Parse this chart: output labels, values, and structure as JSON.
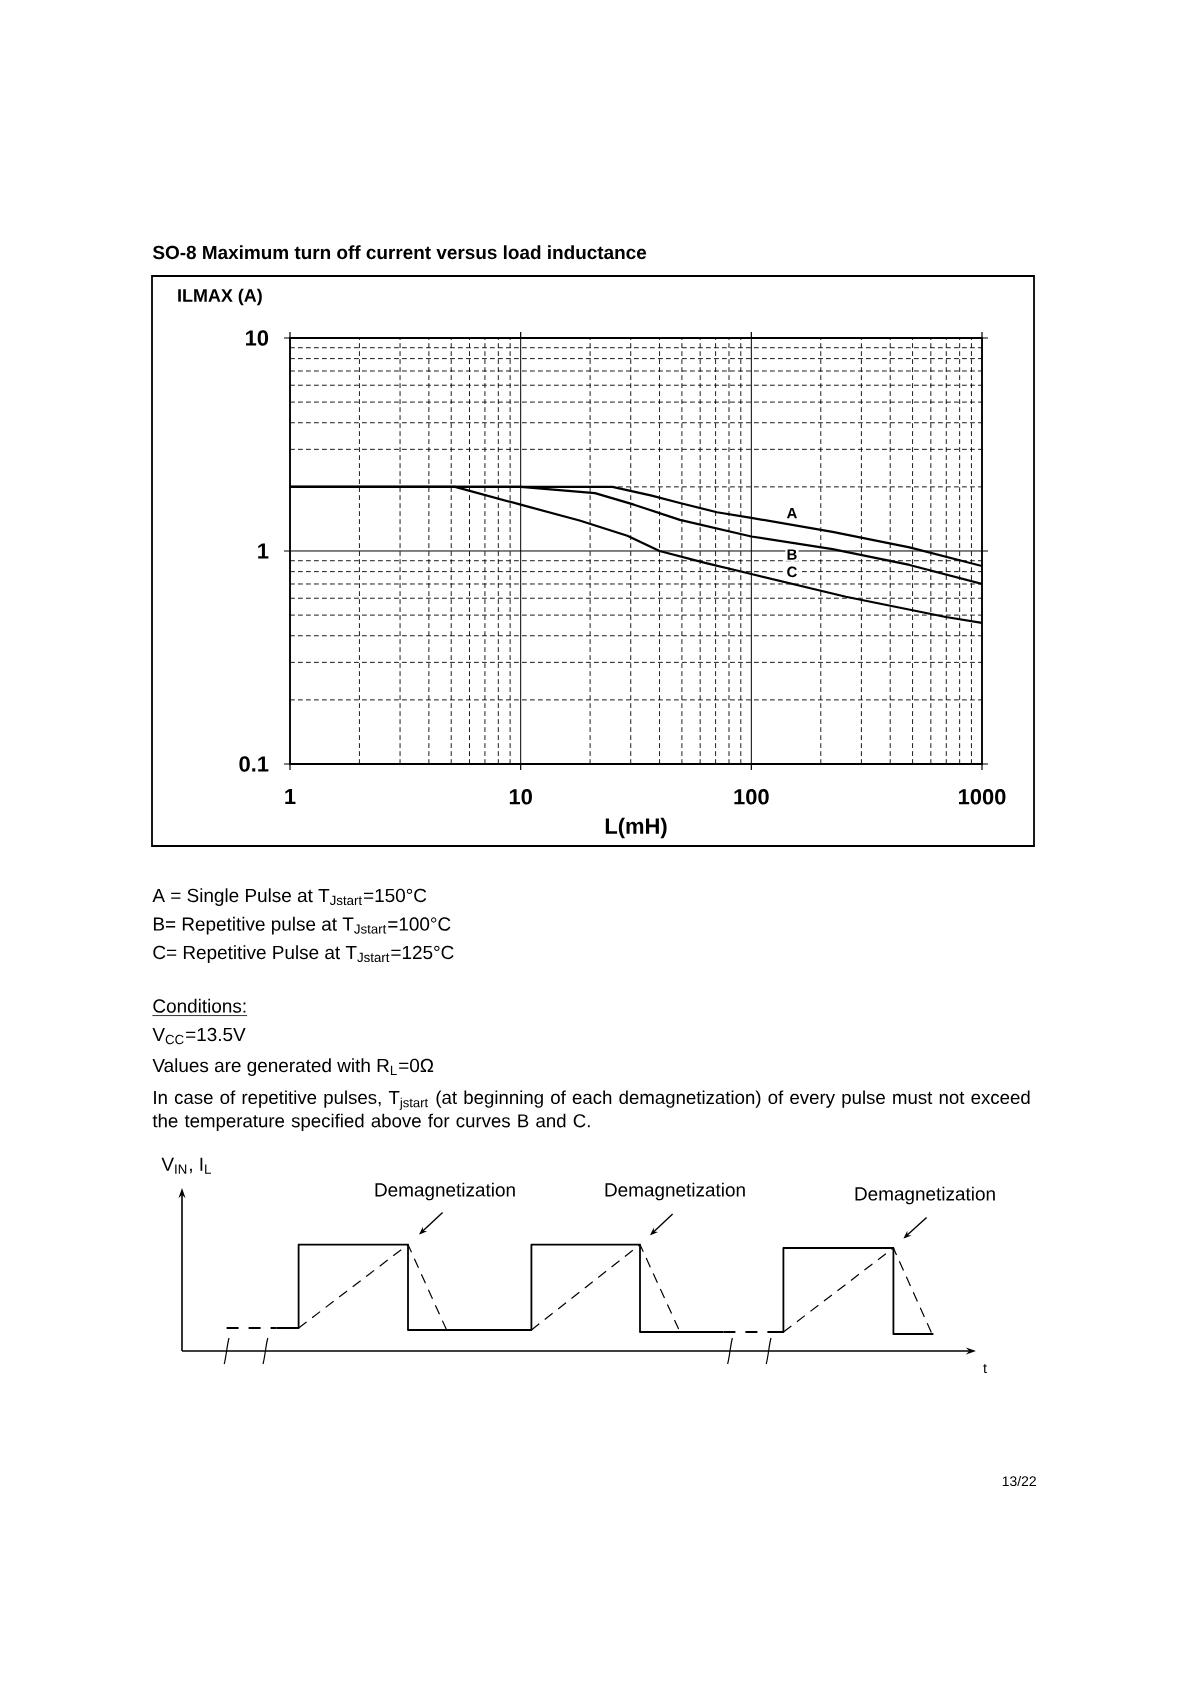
{
  "chart_data": {
    "type": "line",
    "title": "SO-8 Maximum turn off current versus load inductance",
    "xlabel": "L(mH)",
    "ylabel": "ILMAX (A)",
    "log": "xy",
    "xlim": [
      1,
      1000
    ],
    "ylim": [
      0.1,
      10
    ],
    "xticks": [
      1,
      10,
      100,
      1000
    ],
    "yticks": [
      0.1,
      1,
      10
    ],
    "grid": true,
    "series": [
      {
        "name": "A",
        "color": "#000000",
        "x": [
          1,
          25,
          37,
          49,
          71,
          100,
          225,
          485,
          1000
        ],
        "values": [
          2,
          2,
          1.82,
          1.68,
          1.52,
          1.43,
          1.23,
          1.04,
          0.85
        ]
      },
      {
        "name": "B",
        "color": "#000000",
        "x": [
          1,
          10,
          21,
          31,
          49,
          100,
          225,
          485,
          1000
        ],
        "values": [
          2,
          2,
          1.87,
          1.65,
          1.4,
          1.17,
          1.02,
          0.86,
          0.7
        ]
      },
      {
        "name": "C",
        "color": "#000000",
        "x": [
          1,
          5.2,
          10,
          18,
          29,
          40,
          63,
          100,
          257,
          697,
          1000
        ],
        "values": [
          2,
          2,
          1.65,
          1.39,
          1.18,
          1.0,
          0.88,
          0.78,
          0.61,
          0.49,
          0.46
        ]
      }
    ],
    "annotations": [
      "A = Single Pulse at T$_{Jstart}$=150°C",
      "B= Repetitive pulse at T$_{Jstart}$=100°C",
      "C= Repetitive Pulse at T$_{Jstart}$=125°C",
      "Conditions:",
      "V$_{CC}$=13.5V",
      "Values are generated with R$_{L}$=0Ω",
      "In case of repetitive pulses, T$_{jstart}$ (at beginning of each demagnetization) of every pulse must not exceed the temperature specified above for curves B and C.",
      "V$_{IN}$, I$_{L}$",
      "Demagnetization",
      "Demagnetization",
      "Demagnetization",
      "t",
      "13/22"
    ]
  }
}
